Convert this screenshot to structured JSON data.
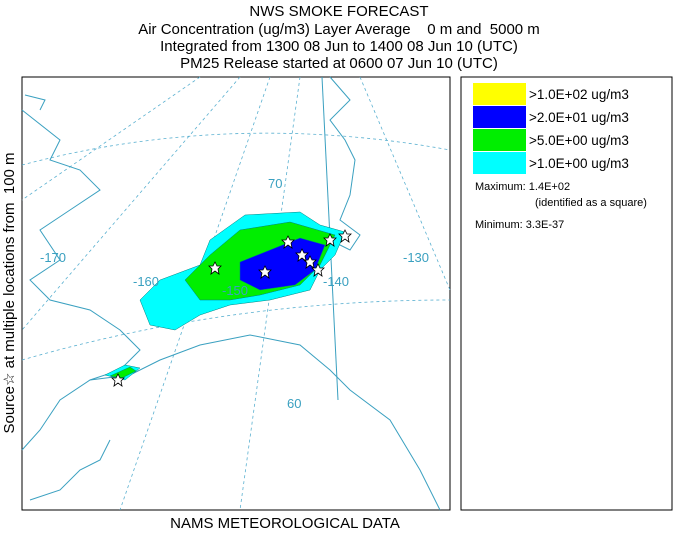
{
  "header": {
    "title": "NWS SMOKE FORECAST",
    "lines": [
      "Air Concentration (ug/m3) Layer Average    0 m and  5000 m",
      "Integrated from 1300 08 Jun to 1400 08 Jun 10 (UTC)",
      "PM25 Release started at 0600 07 Jun 10 (UTC)"
    ]
  },
  "side_label": "Source☆ at multiple locations from  100 m",
  "footer": "NAMS METEOROLOGICAL DATA",
  "legend": {
    "items": [
      {
        "label": ">1.0E+02 ug/m3",
        "color": "#ffff00"
      },
      {
        "label": ">2.0E+01 ug/m3",
        "color": "#0000ff"
      },
      {
        "label": ">5.0E+00 ug/m3",
        "color": "#00ee00"
      },
      {
        "label": ">1.0E+00 ug/m3",
        "color": "#00ffff"
      }
    ],
    "maximum": "Maximum: 1.4E+02",
    "maximum_note": "(identified as a square)",
    "minimum": "Minimum: 3.3E-37"
  },
  "map": {
    "longitude_labels": [
      "-170",
      "-160",
      "-150",
      "-140",
      "-130"
    ],
    "latitude_labels": [
      "70",
      "60"
    ]
  }
}
